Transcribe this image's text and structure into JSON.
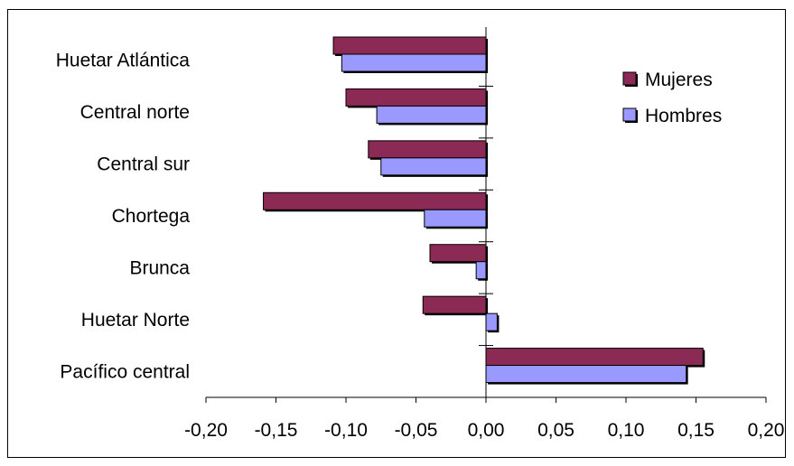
{
  "chart_data": {
    "type": "bar",
    "orientation": "horizontal",
    "categories": [
      "Huetar Atlántica",
      "Central norte",
      "Central sur",
      "Chortega",
      "Brunca",
      "Huetar Norte",
      "Pacífico central"
    ],
    "series": [
      {
        "name": "Mujeres",
        "color": "#8b2a55",
        "values": [
          -0.109,
          -0.1,
          -0.084,
          -0.159,
          -0.04,
          -0.045,
          0.155
        ]
      },
      {
        "name": "Hombres",
        "color": "#9999ff",
        "values": [
          -0.103,
          -0.078,
          -0.075,
          -0.044,
          -0.007,
          0.008,
          0.143
        ]
      }
    ],
    "xlim": [
      -0.2,
      0.2
    ],
    "xticks": [
      "-0,20",
      "-0,15",
      "-0,10",
      "-0,05",
      "0,00",
      "0,05",
      "0,10",
      "0,15",
      "0,20"
    ],
    "xtick_values": [
      -0.2,
      -0.15,
      -0.1,
      -0.05,
      0.0,
      0.05,
      0.1,
      0.15,
      0.2
    ],
    "legend_position": "top-right",
    "grid": false
  }
}
